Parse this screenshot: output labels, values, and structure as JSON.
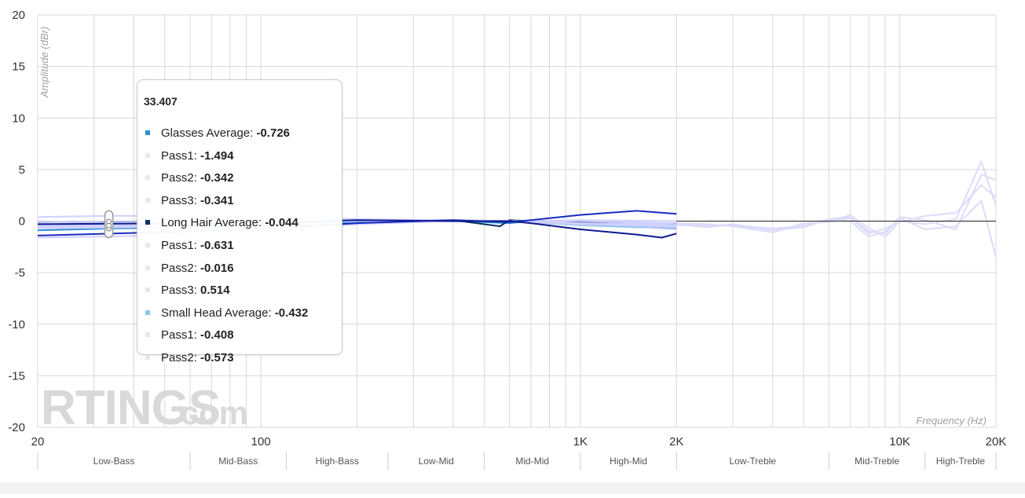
{
  "chart_data": {
    "type": "line",
    "ylabel": "Amplitude (dBr)",
    "xlabel": "Frequency (Hz)",
    "x_scale": "log",
    "xlim": [
      20,
      20000
    ],
    "ylim": [
      -20,
      20
    ],
    "grid": true,
    "y_ticks": [
      "20",
      "15",
      "10",
      "5",
      "0",
      "-5",
      "-10",
      "-15",
      "-20"
    ],
    "x_ticks": [
      {
        "value": 20,
        "label": "20"
      },
      {
        "value": 100,
        "label": "100"
      },
      {
        "value": 1000,
        "label": "1K"
      },
      {
        "value": 2000,
        "label": "2K"
      },
      {
        "value": 10000,
        "label": "10K"
      },
      {
        "value": 20000,
        "label": "20K"
      }
    ],
    "bands": [
      {
        "label": "Low-Bass",
        "from": 20,
        "to": 60
      },
      {
        "label": "Mid-Bass",
        "from": 60,
        "to": 120
      },
      {
        "label": "High-Bass",
        "from": 120,
        "to": 250
      },
      {
        "label": "Low-Mid",
        "from": 250,
        "to": 500
      },
      {
        "label": "Mid-Mid",
        "from": 500,
        "to": 1000
      },
      {
        "label": "High-Mid",
        "from": 1000,
        "to": 2000
      },
      {
        "label": "Low-Treble",
        "from": 2000,
        "to": 6000
      },
      {
        "label": "Mid-Treble",
        "from": 6000,
        "to": 12000
      },
      {
        "label": "High-Treble",
        "from": 12000,
        "to": 20000
      }
    ],
    "series": [
      {
        "name": "Glasses Average",
        "color": "#2b8fd6",
        "x": [
          20,
          33.407,
          60,
          100,
          200,
          400,
          600,
          700,
          1000,
          1500,
          2000
        ],
        "y": [
          -0.9,
          -0.726,
          -0.6,
          -0.4,
          -0.1,
          0.0,
          -0.2,
          0.0,
          -0.2,
          -0.4,
          -0.7
        ]
      },
      {
        "name": "Pass1",
        "color": "#d0d0ff",
        "x": [
          20,
          33.407,
          60,
          100,
          200,
          400,
          600,
          1000,
          2000
        ],
        "y": [
          -1.6,
          -1.494,
          -1.3,
          -0.9,
          -0.3,
          0.0,
          0.0,
          -0.3,
          -0.8
        ]
      },
      {
        "name": "Pass2",
        "color": "#d0d0ff",
        "x": [
          20,
          33.407,
          60,
          100,
          200,
          400,
          600,
          1000,
          2000
        ],
        "y": [
          -0.4,
          -0.342,
          -0.3,
          -0.2,
          0.0,
          0.1,
          0.0,
          -0.1,
          -0.5
        ]
      },
      {
        "name": "Pass3",
        "color": "#d0d0ff",
        "x": [
          20,
          33.407,
          60,
          100,
          200,
          400,
          600,
          1000,
          2000
        ],
        "y": [
          -0.4,
          -0.341,
          -0.3,
          -0.2,
          0.0,
          0.1,
          0.0,
          -0.2,
          -0.6
        ]
      },
      {
        "name": "Long Hair Average",
        "color": "#0b2f66",
        "x": [
          20,
          33.407,
          60,
          100,
          200,
          400,
          560,
          600,
          700,
          1000,
          1500,
          2000
        ],
        "y": [
          -0.1,
          -0.044,
          0.0,
          0.1,
          0.1,
          0.1,
          -0.5,
          0.1,
          0.0,
          -0.1,
          -0.3,
          -0.2
        ]
      },
      {
        "name": "Pass1",
        "color": "#d0d0ff",
        "x": [
          20,
          33.407,
          60,
          100,
          200,
          400,
          600,
          1000,
          2000
        ],
        "y": [
          -0.7,
          -0.631,
          -0.5,
          -0.3,
          0.0,
          0.1,
          0.0,
          -0.2,
          -0.3
        ]
      },
      {
        "name": "Pass2",
        "color": "#d0d0ff",
        "x": [
          20,
          33.407,
          60,
          100,
          200,
          400,
          600,
          1000,
          2000
        ],
        "y": [
          -0.1,
          -0.016,
          0.0,
          0.1,
          0.1,
          0.1,
          0.0,
          0.0,
          -0.2
        ]
      },
      {
        "name": "Pass3",
        "color": "#d0d0ff",
        "x": [
          20,
          33.407,
          60,
          100,
          200,
          400,
          600,
          1000,
          2000
        ],
        "y": [
          0.4,
          0.514,
          0.5,
          0.4,
          0.2,
          0.1,
          0.0,
          0.1,
          0.0
        ]
      },
      {
        "name": "Small Head Average",
        "color": "#8fc5ea",
        "x": [
          20,
          33.407,
          60,
          100,
          200,
          400,
          600,
          1000,
          1500,
          2000
        ],
        "y": [
          -0.5,
          -0.432,
          -0.3,
          -0.2,
          0.0,
          0.1,
          0.0,
          -0.4,
          -0.6,
          -0.3
        ]
      },
      {
        "name": "Pass1",
        "color": "#d0d0ff",
        "x": [
          20,
          33.407,
          60,
          100,
          200,
          400,
          600,
          1000,
          2000
        ],
        "y": [
          -0.5,
          -0.408,
          -0.3,
          -0.2,
          0.0,
          0.1,
          0.0,
          -0.3,
          -0.5
        ]
      },
      {
        "name": "Pass2",
        "color": "#d0d0ff",
        "x": [
          20,
          33.407,
          60,
          100,
          200,
          400,
          600,
          1000,
          2000
        ],
        "y": [
          -0.6,
          -0.573,
          -0.4,
          -0.2,
          0.0,
          0.1,
          0.0,
          -0.3,
          -0.4
        ]
      },
      {
        "name": "",
        "color": "#1a2bc0",
        "x": [
          20,
          60,
          100,
          200,
          400,
          600,
          700,
          1000,
          1500,
          2000
        ],
        "y": [
          -1.4,
          -1.0,
          -0.7,
          -0.2,
          0.1,
          -0.1,
          0.1,
          0.6,
          1.0,
          0.7
        ]
      },
      {
        "name": "",
        "color": "#0d1a8f",
        "x": [
          20,
          60,
          100,
          200,
          400,
          600,
          700,
          1000,
          1500,
          1800,
          2000
        ],
        "y": [
          -0.3,
          -0.2,
          -0.2,
          0.1,
          0.0,
          0.0,
          -0.2,
          -0.8,
          -1.3,
          -1.6,
          -1.2
        ]
      },
      {
        "name": "",
        "color": "#dcdcfa",
        "x": [
          2000,
          2500,
          3000,
          4000,
          5000,
          6000,
          7000,
          8000,
          9000,
          10000,
          12000,
          15000,
          18000,
          20000
        ],
        "y": [
          -0.3,
          -0.5,
          -0.4,
          -0.9,
          -0.6,
          0.2,
          0.0,
          -1.5,
          -1.0,
          0.3,
          -0.8,
          -0.5,
          2.0,
          -3.5
        ]
      },
      {
        "name": "",
        "color": "#dcdcfa",
        "x": [
          2000,
          2500,
          3000,
          4000,
          5000,
          6000,
          7000,
          8000,
          9000,
          10000,
          12000,
          15000,
          18000,
          20000
        ],
        "y": [
          -0.2,
          -0.3,
          -0.5,
          -1.1,
          -0.2,
          -0.1,
          0.6,
          -0.7,
          -1.5,
          0.0,
          -0.3,
          0.2,
          5.8,
          1.5
        ]
      },
      {
        "name": "",
        "color": "#dcdcfa",
        "x": [
          2000,
          2500,
          3000,
          4000,
          5000,
          6000,
          7000,
          8000,
          9000,
          10000,
          12000,
          15000,
          18000,
          20000
        ],
        "y": [
          -0.4,
          -0.4,
          -0.4,
          -0.7,
          -0.5,
          0.2,
          0.4,
          -1.0,
          -1.2,
          0.4,
          0.1,
          -0.8,
          4.5,
          4.0
        ]
      },
      {
        "name": "",
        "color": "#dcdcfa",
        "x": [
          2000,
          2500,
          3000,
          4000,
          5000,
          6000,
          7000,
          8000,
          9000,
          10000,
          12000,
          15000,
          18000,
          20000
        ],
        "y": [
          -0.3,
          -0.6,
          -0.3,
          -0.9,
          -0.3,
          0.0,
          0.3,
          -1.2,
          -0.7,
          -0.1,
          0.5,
          0.8,
          3.5,
          2.3
        ]
      }
    ],
    "tooltip": {
      "x": 33.407,
      "x_label": "33.407",
      "rows": [
        {
          "name": "Glasses Average",
          "value": "-0.726",
          "color": "#2b8fd6"
        },
        {
          "name": "Pass1",
          "value": "-1.494",
          "color": "#e8e8e8"
        },
        {
          "name": "Pass2",
          "value": "-0.342",
          "color": "#e8e8e8"
        },
        {
          "name": "Pass3",
          "value": "-0.341",
          "color": "#e8e8e8"
        },
        {
          "name": "Long Hair Average",
          "value": "-0.044",
          "color": "#0b2f66"
        },
        {
          "name": "Pass1",
          "value": "-0.631",
          "color": "#e8e8e8"
        },
        {
          "name": "Pass2",
          "value": "-0.016",
          "color": "#e8e8e8"
        },
        {
          "name": "Pass3",
          "value": "0.514",
          "color": "#e8e8e8"
        },
        {
          "name": "Small Head Average",
          "value": "-0.432",
          "color": "#8fc5ea"
        },
        {
          "name": "Pass1",
          "value": "-0.408",
          "color": "#e8e8e8"
        },
        {
          "name": "Pass2",
          "value": "-0.573",
          "color": "#e8e8e8"
        }
      ]
    }
  },
  "watermark": {
    "brand": "RTINGS",
    "suffix": ".com"
  }
}
